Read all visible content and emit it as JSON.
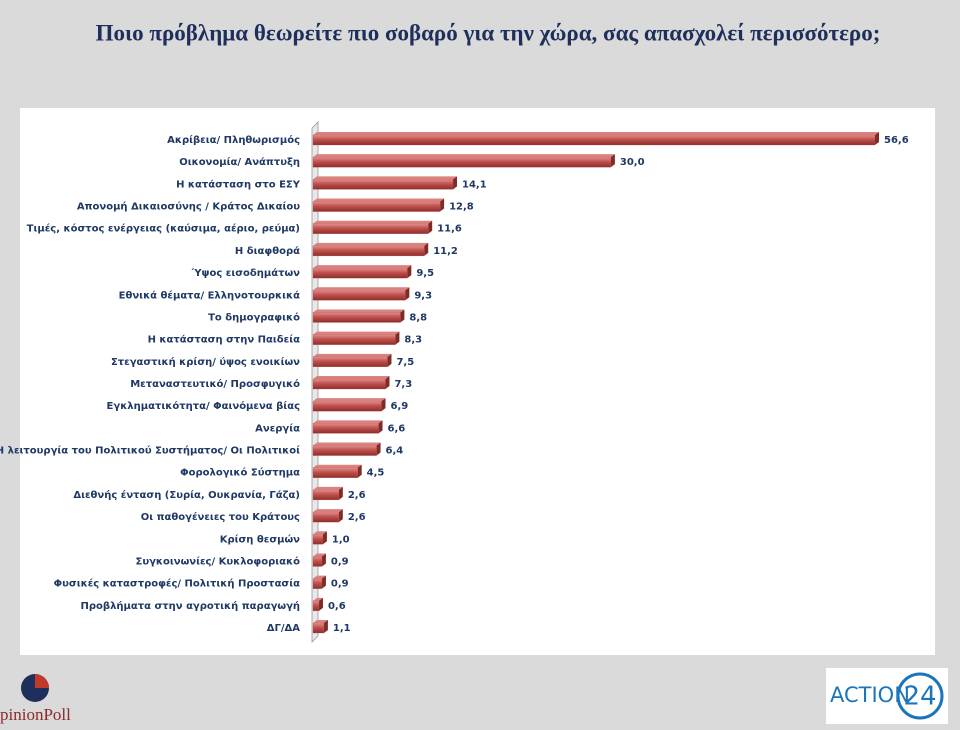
{
  "chart_data": {
    "type": "bar",
    "title": "Ποιο πρόβλημα θεωρείτε πιο σοβαρό για την χώρα, σας απασχολεί περισσότερο;",
    "categories": [
      "Ακρίβεια/ Πληθωρισμός",
      "Οικονομία/ Ανάπτυξη",
      "Η κατάσταση στο ΕΣΥ",
      "Απονομή Δικαιοσύνης / Κράτος Δικαίου",
      "Τιμές, κόστος ενέργειας (καύσιμα, αέριο, ρεύμα)",
      "Η διαφθορά",
      "Ύψος εισοδημάτων",
      "Εθνικά θέματα/ Ελληνοτουρκικά",
      "Το δημογραφικό",
      "Η κατάσταση στην Παιδεία",
      "Στεγαστική κρίση/ ύψος ενοικίων",
      "Μεταναστευτικό/ Προσφυγικό",
      "Εγκληματικότητα/ Φαινόμενα βίας",
      "Ανεργία",
      "Η λειτουργία του Πολιτικού Συστήματος/ Οι Πολιτικοί",
      "Φορολογικό Σύστημα",
      "Διεθνής ένταση (Συρία, Ουκρανία, Γάζα)",
      "Οι παθογένειες του Κράτους",
      "Κρίση θεσμών",
      "Συγκοινωνίες/ Κυκλοφοριακό",
      "Φυσικές καταστροφές/ Πολιτική Προστασία",
      "Προβλήματα στην αγροτική παραγωγή",
      "ΔΓ/ΔΑ"
    ],
    "values": [
      56.6,
      30.0,
      14.1,
      12.8,
      11.6,
      11.2,
      9.5,
      9.3,
      8.8,
      8.3,
      7.5,
      7.3,
      6.9,
      6.6,
      6.4,
      4.5,
      2.6,
      2.6,
      1.0,
      0.9,
      0.9,
      0.6,
      1.1
    ],
    "value_labels": [
      "56,6",
      "30,0",
      "14,1",
      "12,8",
      "11,6",
      "11,2",
      "9,5",
      "9,3",
      "8,8",
      "8,3",
      "7,5",
      "7,3",
      "6,9",
      "6,6",
      "6,4",
      "4,5",
      "2,6",
      "2,6",
      "1,0",
      "0,9",
      "0,9",
      "0,6",
      "1,1"
    ],
    "color": "#c0504d"
  },
  "logos": {
    "left": "pinionPoll",
    "right_text": "ACTION",
    "right_number": "24"
  }
}
